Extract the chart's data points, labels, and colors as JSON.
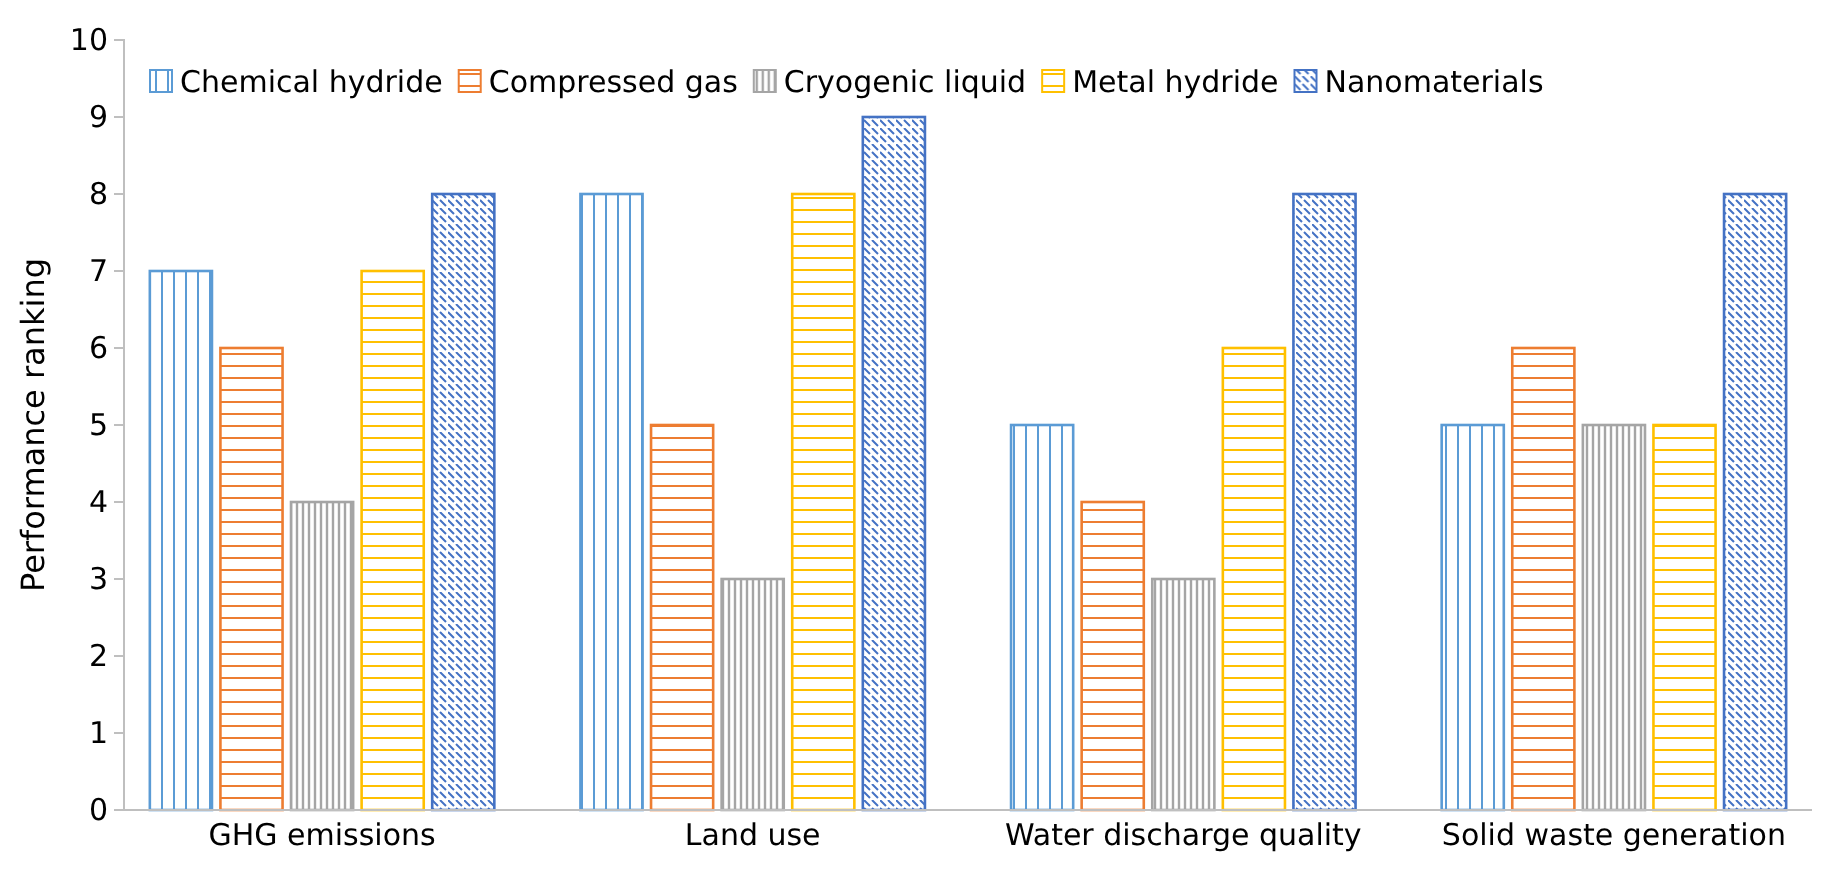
{
  "chart_data": {
    "type": "bar",
    "ylabel": "Performance ranking",
    "categories": [
      "GHG emissions",
      "Land use",
      "Water discharge quality",
      "Solid waste generation"
    ],
    "series": [
      {
        "name": "Chemical hydride",
        "color": "#5b9bd5",
        "values": [
          7,
          8,
          5,
          5
        ]
      },
      {
        "name": "Compressed gas",
        "color": "#ed7d31",
        "values": [
          6,
          5,
          4,
          6
        ]
      },
      {
        "name": "Cryogenic liquid",
        "color": "#a5a5a5",
        "values": [
          4,
          3,
          3,
          5
        ]
      },
      {
        "name": "Metal hydride",
        "color": "#ffc000",
        "values": [
          7,
          8,
          6,
          5
        ]
      },
      {
        "name": "Nanomaterials",
        "color": "#4472c4",
        "values": [
          8,
          9,
          8,
          8
        ]
      }
    ],
    "ylim": [
      0,
      10
    ],
    "yticks": [
      0,
      1,
      2,
      3,
      4,
      5,
      6,
      7,
      8,
      9,
      10
    ],
    "legend": "top",
    "grid": false
  }
}
